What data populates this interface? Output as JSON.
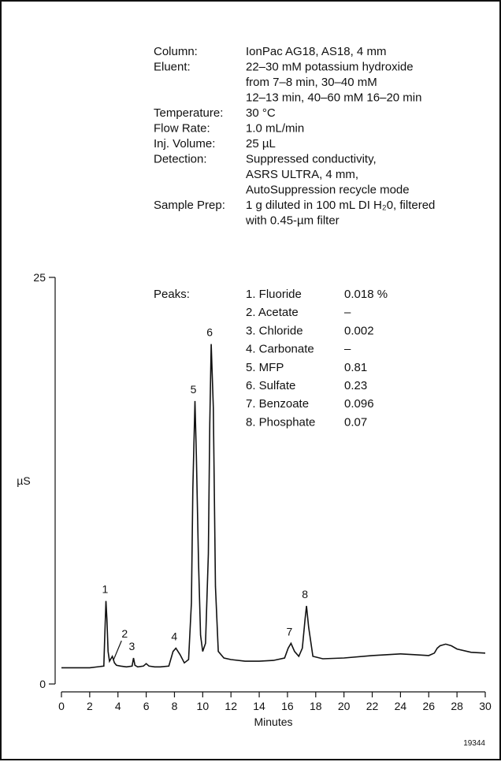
{
  "conditions": [
    {
      "label": "Column:",
      "lines": [
        "IonPac AG18, AS18, 4 mm"
      ]
    },
    {
      "label": "Eluent:",
      "lines": [
        "22–30 mM potassium hydroxide",
        "from 7–8 min, 30–40 mM",
        "12–13 min, 40–60 mM 16–20 min"
      ]
    },
    {
      "label": "Temperature:",
      "lines": [
        "30 °C"
      ]
    },
    {
      "label": "Flow Rate:",
      "lines": [
        "1.0 mL/min"
      ]
    },
    {
      "label": "Inj. Volume:",
      "lines": [
        "25 µL"
      ]
    },
    {
      "label": "Detection:",
      "lines": [
        "Suppressed conductivity,",
        "ASRS ULTRA, 4 mm,",
        "AutoSuppression recycle mode"
      ]
    },
    {
      "label": "Sample Prep:",
      "lines": [
        "1 g diluted in 100 mL DI H₂0, filtered",
        "with 0.45-µm filter"
      ]
    }
  ],
  "peaks_label": "Peaks:",
  "peaks": [
    {
      "name": "1. Fluoride",
      "value": "0.018 %"
    },
    {
      "name": "2. Acetate",
      "value": "–"
    },
    {
      "name": "3. Chloride",
      "value": "0.002"
    },
    {
      "name": "4. Carbonate",
      "value": "–"
    },
    {
      "name": "5. MFP",
      "value": "0.81"
    },
    {
      "name": "6. Sulfate",
      "value": "0.23"
    },
    {
      "name": "7. Benzoate",
      "value": "0.096"
    },
    {
      "name": "8. Phosphate",
      "value": "0.07"
    }
  ],
  "figure_id": "19344",
  "chart_data": {
    "type": "line",
    "xlabel": "Minutes",
    "ylabel": "µS",
    "xlim": [
      0,
      30
    ],
    "ylim": [
      0,
      25
    ],
    "xticks": [
      0,
      2,
      4,
      6,
      8,
      10,
      12,
      14,
      16,
      18,
      20,
      22,
      24,
      26,
      28,
      30
    ],
    "yticks": [
      0,
      25
    ],
    "grid": false,
    "series": [
      {
        "x": [
          0,
          1,
          2,
          3,
          3.05,
          3.15,
          3.22,
          3.3,
          3.4,
          3.6,
          3.75,
          3.9,
          4.2,
          4.6,
          5.0,
          5.1,
          5.2,
          5.4,
          5.8,
          6.0,
          6.2,
          6.6,
          7.0,
          7.6,
          7.9,
          8.1,
          8.4,
          8.7,
          9.0,
          9.2,
          9.3,
          9.45,
          9.55,
          9.7,
          9.85,
          10.0,
          10.2,
          10.4,
          10.5,
          10.6,
          10.75,
          10.9,
          11.1,
          11.5,
          12,
          13,
          14,
          15,
          15.8,
          16.05,
          16.25,
          16.5,
          16.8,
          17.05,
          17.25,
          17.35,
          17.5,
          17.8,
          18.5,
          20,
          22,
          24,
          25,
          26,
          26.4,
          26.6,
          26.8,
          27.2,
          27.6,
          28,
          29,
          30
        ],
        "y": [
          1.0,
          1.0,
          1.0,
          1.1,
          2.5,
          5.1,
          4.0,
          2.0,
          1.4,
          1.7,
          1.3,
          1.15,
          1.1,
          1.05,
          1.1,
          1.6,
          1.15,
          1.05,
          1.1,
          1.25,
          1.1,
          1.05,
          1.05,
          1.1,
          2.0,
          2.2,
          1.8,
          1.3,
          1.5,
          5.0,
          12.0,
          17.4,
          14.0,
          7.5,
          3.0,
          2.0,
          2.5,
          8.0,
          16.0,
          20.9,
          17.0,
          6.0,
          2.0,
          1.6,
          1.5,
          1.4,
          1.4,
          1.45,
          1.6,
          2.2,
          2.5,
          2.0,
          1.7,
          2.2,
          4.0,
          4.8,
          3.5,
          1.7,
          1.55,
          1.6,
          1.75,
          1.85,
          1.8,
          1.75,
          1.9,
          2.2,
          2.35,
          2.45,
          2.35,
          2.15,
          1.95,
          1.9
        ]
      }
    ],
    "peak_labels": [
      {
        "label": "1",
        "x": 3.2,
        "y": 5.1
      },
      {
        "label": "2",
        "x": 3.75,
        "y": 1.3
      },
      {
        "label": "3",
        "x": 5.1,
        "y": 1.6
      },
      {
        "label": "4",
        "x": 8.1,
        "y": 2.2
      },
      {
        "label": "5",
        "x": 9.45,
        "y": 17.4
      },
      {
        "label": "6",
        "x": 10.6,
        "y": 20.9
      },
      {
        "label": "7",
        "x": 16.25,
        "y": 2.5
      },
      {
        "label": "8",
        "x": 17.35,
        "y": 4.8
      }
    ]
  }
}
